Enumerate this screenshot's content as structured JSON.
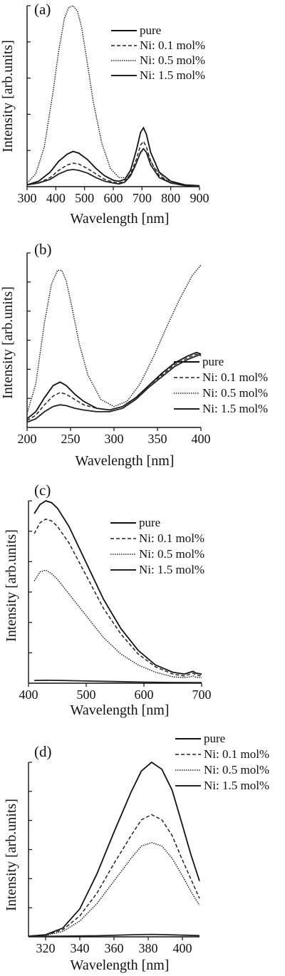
{
  "chart_data": [
    {
      "type": "line",
      "panel_label": "(a)",
      "xlabel": "Wavelength [nm]",
      "ylabel": "Intensity [arb.units]",
      "xlim": [
        300,
        900
      ],
      "ylim": [
        0,
        1
      ],
      "x_ticks": [
        300,
        400,
        500,
        600,
        700,
        800,
        900
      ],
      "legend_position": "top-right",
      "series": [
        {
          "name": "pure",
          "dash": "solid",
          "color": "#111111",
          "x": [
            300,
            340,
            380,
            410,
            440,
            460,
            480,
            510,
            540,
            570,
            600,
            620,
            640,
            660,
            680,
            695,
            705,
            715,
            730,
            760,
            800,
            850,
            900
          ],
          "y": [
            0.01,
            0.03,
            0.08,
            0.14,
            0.18,
            0.195,
            0.185,
            0.15,
            0.1,
            0.06,
            0.035,
            0.03,
            0.04,
            0.09,
            0.2,
            0.3,
            0.325,
            0.29,
            0.19,
            0.08,
            0.03,
            0.01,
            0.005
          ]
        },
        {
          "name": "Ni: 0.1 mol%",
          "dash": "5,3",
          "color": "#222222",
          "x": [
            300,
            340,
            380,
            410,
            440,
            460,
            480,
            510,
            540,
            570,
            600,
            620,
            640,
            660,
            680,
            695,
            705,
            715,
            730,
            760,
            800,
            850,
            900
          ],
          "y": [
            0.01,
            0.02,
            0.05,
            0.09,
            0.12,
            0.13,
            0.125,
            0.1,
            0.07,
            0.04,
            0.025,
            0.02,
            0.03,
            0.07,
            0.15,
            0.23,
            0.25,
            0.22,
            0.14,
            0.06,
            0.02,
            0.008,
            0.004
          ]
        },
        {
          "name": "Ni: 0.5 mol%",
          "dash": "1.5,1.5",
          "color": "#222222",
          "x": [
            300,
            330,
            360,
            390,
            410,
            430,
            445,
            460,
            475,
            490,
            510,
            530,
            560,
            590,
            620,
            650,
            670,
            690,
            705,
            720,
            740,
            780,
            830,
            900
          ],
          "y": [
            0.02,
            0.07,
            0.22,
            0.52,
            0.75,
            0.93,
            0.99,
            1.0,
            0.97,
            0.88,
            0.68,
            0.47,
            0.24,
            0.1,
            0.05,
            0.05,
            0.09,
            0.17,
            0.21,
            0.18,
            0.11,
            0.04,
            0.01,
            0.004
          ]
        },
        {
          "name": "Ni: 1.5 mol%",
          "dash": "solid",
          "color": "#222222",
          "x": [
            300,
            340,
            380,
            410,
            440,
            460,
            480,
            510,
            540,
            570,
            600,
            620,
            640,
            660,
            680,
            695,
            705,
            715,
            730,
            760,
            800,
            850,
            900
          ],
          "y": [
            0.01,
            0.02,
            0.04,
            0.07,
            0.09,
            0.095,
            0.09,
            0.075,
            0.05,
            0.03,
            0.02,
            0.015,
            0.025,
            0.06,
            0.13,
            0.19,
            0.21,
            0.19,
            0.12,
            0.05,
            0.02,
            0.006,
            0.003
          ]
        }
      ]
    },
    {
      "type": "line",
      "panel_label": "(b)",
      "xlabel": "Wavelength [nm]",
      "ylabel": "Intensity [arb.units]",
      "xlim": [
        200,
        400
      ],
      "ylim": [
        0,
        1
      ],
      "x_ticks": [
        200,
        250,
        300,
        350,
        400
      ],
      "legend_position": "bottom-right",
      "series": [
        {
          "name": "pure",
          "dash": "solid",
          "color": "#111111",
          "x": [
            200,
            210,
            220,
            230,
            238,
            245,
            255,
            265,
            280,
            295,
            310,
            325,
            340,
            355,
            370,
            385,
            395,
            400
          ],
          "y": [
            0.05,
            0.09,
            0.17,
            0.24,
            0.26,
            0.24,
            0.19,
            0.15,
            0.11,
            0.1,
            0.12,
            0.17,
            0.24,
            0.31,
            0.37,
            0.41,
            0.43,
            0.42
          ]
        },
        {
          "name": "Ni: 0.1 mol%",
          "dash": "5,3",
          "color": "#222222",
          "x": [
            200,
            210,
            220,
            230,
            238,
            245,
            255,
            265,
            280,
            295,
            310,
            325,
            340,
            355,
            370,
            385,
            395,
            400
          ],
          "y": [
            0.04,
            0.07,
            0.13,
            0.18,
            0.2,
            0.19,
            0.16,
            0.13,
            0.11,
            0.1,
            0.12,
            0.17,
            0.24,
            0.3,
            0.36,
            0.4,
            0.42,
            0.41
          ]
        },
        {
          "name": "Ni: 0.5 mol%",
          "dash": "1.5,1.5",
          "color": "#222222",
          "x": [
            200,
            210,
            220,
            228,
            235,
            240,
            245,
            252,
            260,
            270,
            285,
            300,
            315,
            330,
            345,
            360,
            375,
            390,
            400
          ],
          "y": [
            0.08,
            0.25,
            0.6,
            0.82,
            0.9,
            0.9,
            0.84,
            0.68,
            0.48,
            0.3,
            0.16,
            0.12,
            0.15,
            0.25,
            0.4,
            0.57,
            0.73,
            0.87,
            0.93
          ]
        },
        {
          "name": "Ni: 1.5 mol%",
          "dash": "solid",
          "color": "#222222",
          "x": [
            200,
            210,
            220,
            230,
            238,
            245,
            255,
            265,
            280,
            295,
            310,
            325,
            340,
            355,
            370,
            385,
            395,
            400
          ],
          "y": [
            0.03,
            0.05,
            0.09,
            0.12,
            0.13,
            0.125,
            0.11,
            0.1,
            0.09,
            0.09,
            0.11,
            0.16,
            0.23,
            0.29,
            0.35,
            0.39,
            0.41,
            0.42
          ]
        }
      ]
    },
    {
      "type": "line",
      "panel_label": "(c)",
      "xlabel": "Wavelength [nm]",
      "ylabel": "Intensity [arb.units]",
      "xlim": [
        400,
        700
      ],
      "ylim": [
        0,
        1
      ],
      "x_ticks": [
        400,
        500,
        600,
        700
      ],
      "legend_position": "top-right",
      "series": [
        {
          "name": "pure",
          "dash": "solid",
          "color": "#111111",
          "x": [
            410,
            420,
            430,
            440,
            450,
            470,
            500,
            530,
            560,
            590,
            620,
            650,
            670,
            680,
            685,
            690,
            700
          ],
          "y": [
            0.93,
            0.98,
            1.0,
            0.99,
            0.96,
            0.86,
            0.66,
            0.46,
            0.3,
            0.18,
            0.1,
            0.06,
            0.05,
            0.06,
            0.065,
            0.055,
            0.05
          ]
        },
        {
          "name": "Ni: 0.1 mol%",
          "dash": "5,3",
          "color": "#222222",
          "x": [
            410,
            420,
            430,
            440,
            450,
            470,
            500,
            530,
            560,
            590,
            620,
            650,
            670,
            680,
            685,
            690,
            700
          ],
          "y": [
            0.82,
            0.88,
            0.9,
            0.89,
            0.86,
            0.77,
            0.59,
            0.41,
            0.27,
            0.16,
            0.09,
            0.05,
            0.04,
            0.05,
            0.055,
            0.045,
            0.04
          ]
        },
        {
          "name": "Ni: 0.5 mol%",
          "dash": "1.5,1.5",
          "color": "#222222",
          "x": [
            410,
            420,
            430,
            440,
            450,
            470,
            500,
            530,
            560,
            590,
            620,
            650,
            670,
            680,
            685,
            690,
            700
          ],
          "y": [
            0.56,
            0.61,
            0.62,
            0.6,
            0.57,
            0.49,
            0.37,
            0.25,
            0.16,
            0.1,
            0.06,
            0.035,
            0.03,
            0.035,
            0.04,
            0.032,
            0.03
          ]
        },
        {
          "name": "Ni: 1.5 mol%",
          "dash": "solid",
          "color": "#222222",
          "x": [
            410,
            430,
            460,
            500,
            550,
            600,
            650,
            700
          ],
          "y": [
            0.015,
            0.016,
            0.015,
            0.012,
            0.009,
            0.006,
            0.004,
            0.003
          ]
        }
      ]
    },
    {
      "type": "line",
      "panel_label": "(d)",
      "xlabel": "Wavelength [nm]",
      "ylabel": "Intensity [arb.units]",
      "xlim": [
        310,
        410
      ],
      "ylim": [
        0,
        1
      ],
      "x_ticks": [
        320,
        340,
        360,
        380,
        400
      ],
      "legend_position": "top-right",
      "series": [
        {
          "name": "pure",
          "dash": "solid",
          "color": "#111111",
          "x": [
            310,
            320,
            330,
            340,
            350,
            360,
            370,
            376,
            382,
            388,
            394,
            400,
            405,
            410
          ],
          "y": [
            0.004,
            0.012,
            0.05,
            0.16,
            0.36,
            0.6,
            0.83,
            0.95,
            1.0,
            0.96,
            0.84,
            0.64,
            0.47,
            0.32
          ]
        },
        {
          "name": "Ni: 0.1 mol%",
          "dash": "5,3",
          "color": "#222222",
          "x": [
            310,
            320,
            330,
            340,
            350,
            360,
            370,
            376,
            382,
            388,
            394,
            400,
            405,
            410
          ],
          "y": [
            0.004,
            0.01,
            0.04,
            0.12,
            0.25,
            0.42,
            0.58,
            0.67,
            0.7,
            0.67,
            0.58,
            0.44,
            0.33,
            0.22
          ]
        },
        {
          "name": "Ni: 0.5 mol%",
          "dash": "1.5,1.5",
          "color": "#222222",
          "x": [
            310,
            320,
            330,
            340,
            350,
            360,
            370,
            376,
            382,
            388,
            394,
            400,
            405,
            410
          ],
          "y": [
            0.003,
            0.008,
            0.03,
            0.09,
            0.19,
            0.32,
            0.45,
            0.52,
            0.54,
            0.52,
            0.45,
            0.35,
            0.26,
            0.18
          ]
        },
        {
          "name": "Ni: 1.5 mol%",
          "dash": "solid",
          "color": "#222222",
          "x": [
            310,
            330,
            350,
            370,
            382,
            395,
            410
          ],
          "y": [
            0.002,
            0.004,
            0.006,
            0.012,
            0.014,
            0.011,
            0.007
          ]
        }
      ]
    }
  ]
}
